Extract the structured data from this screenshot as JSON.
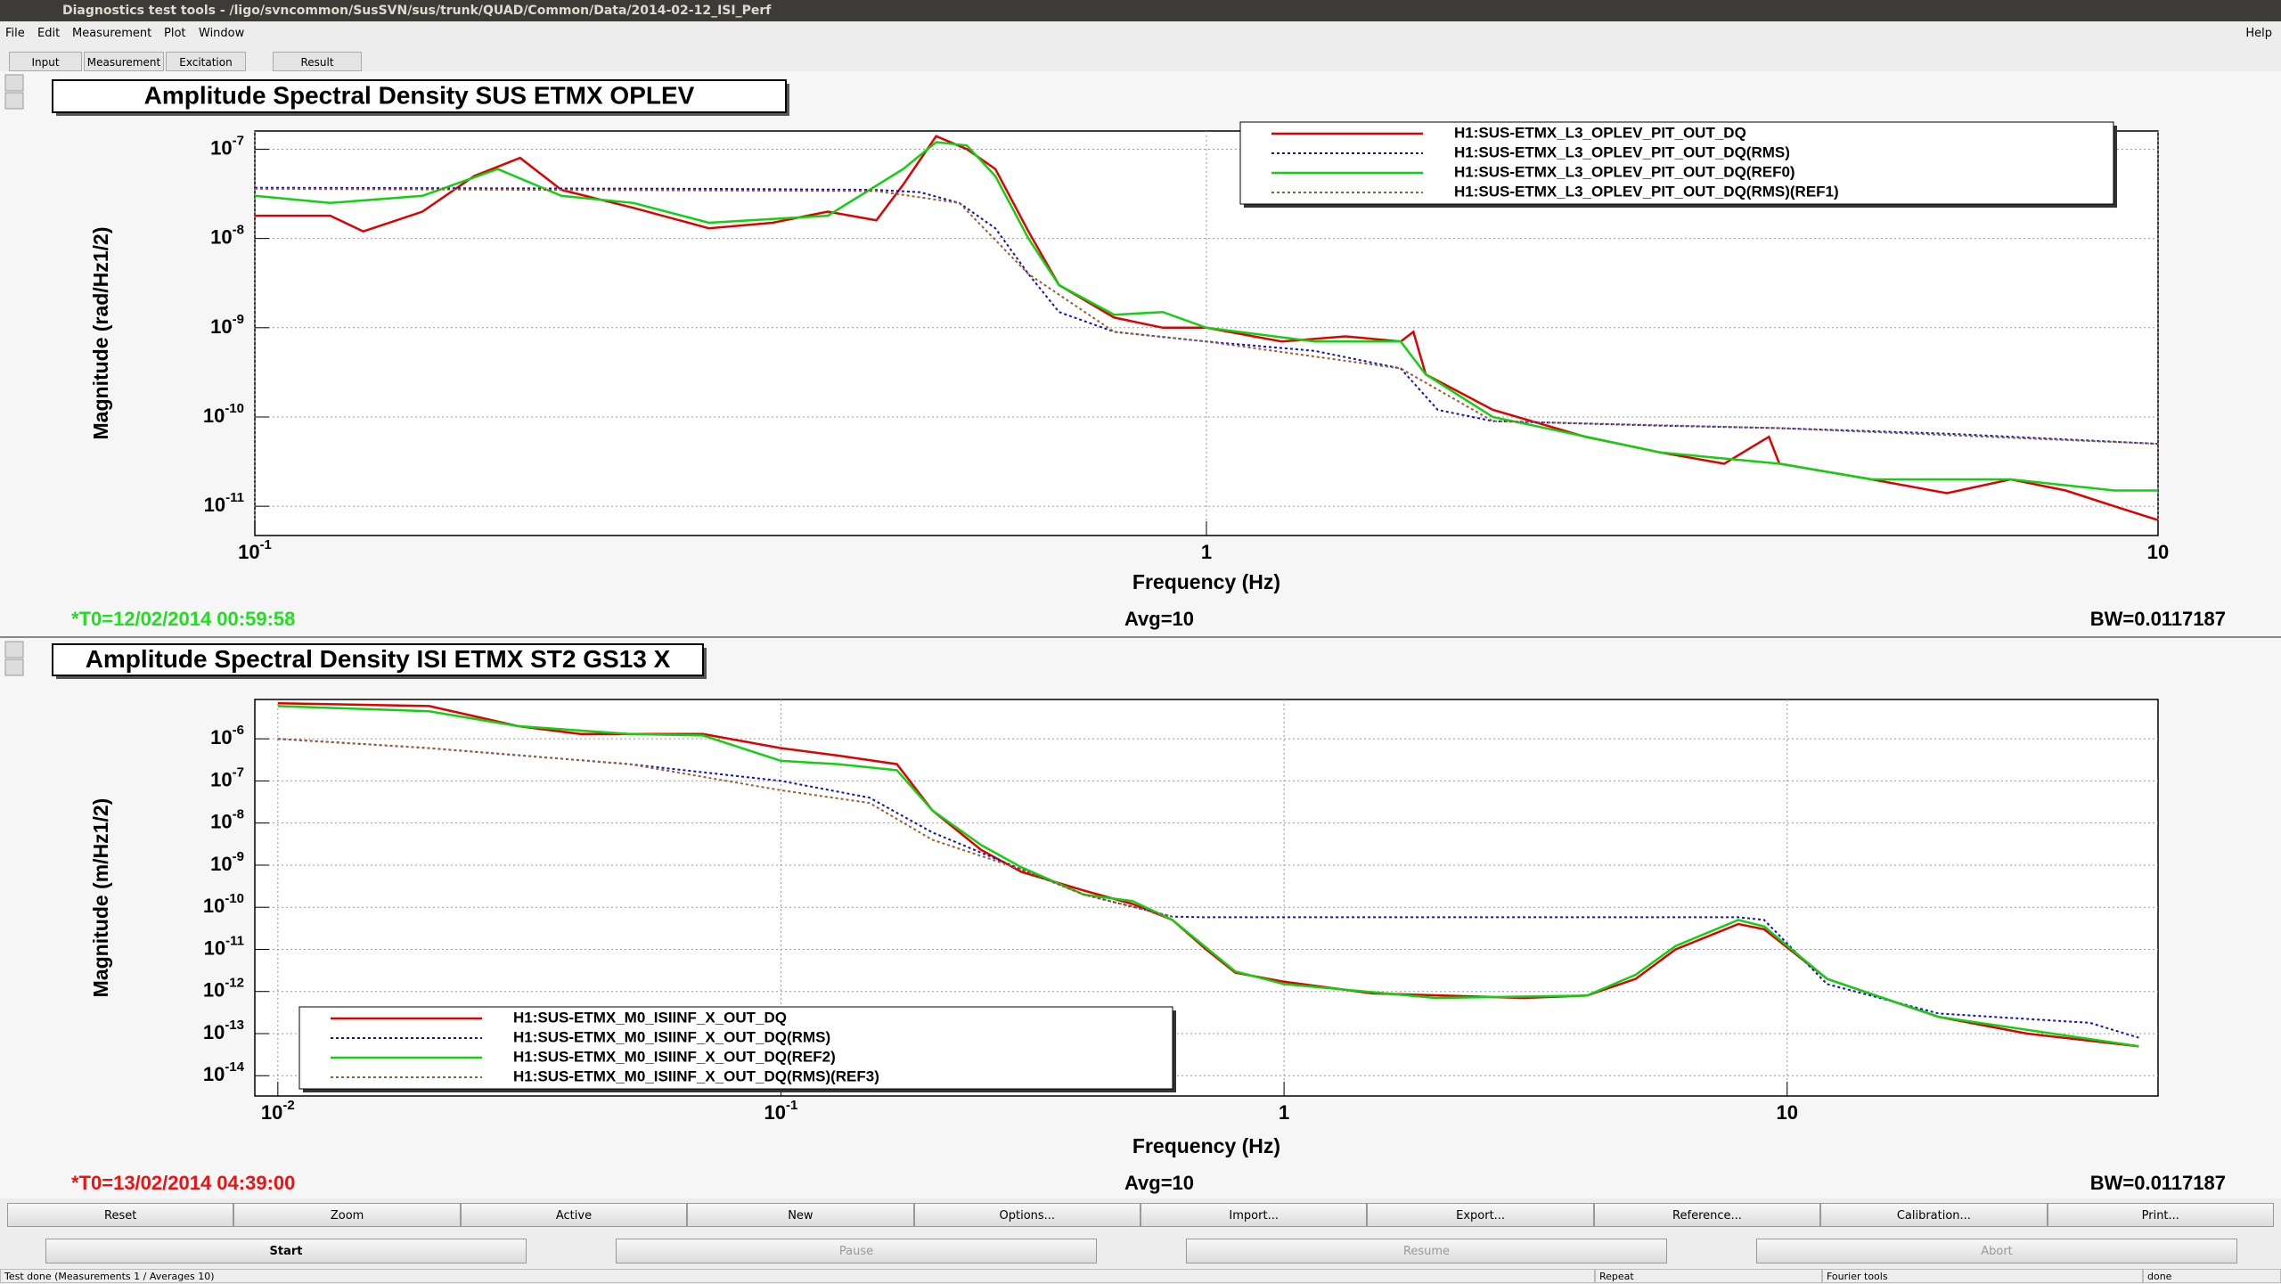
{
  "window_title": "Diagnostics test tools - /ligo/svncommon/SusSVN/sus/trunk/QUAD/Common/Data/2014-02-12_ISI_Perf",
  "menu": [
    "File",
    "Edit",
    "Measurement",
    "Plot",
    "Window"
  ],
  "help": "Help",
  "tabs": [
    "Input",
    "Measurement",
    "Excitation",
    "Result"
  ],
  "chart_data": [
    {
      "type": "line",
      "title": "Amplitude Spectral Density SUS ETMX OPLEV",
      "xlabel": "Frequency (Hz)",
      "ylabel": "Magnitude (rad/Hz1/2)",
      "log_x": true,
      "log_y": true,
      "grid": true,
      "legend": "upper right",
      "xlim": [
        0.1,
        10
      ],
      "ylim": [
        4.7e-12,
        1.6e-07
      ],
      "xticks": [
        {
          "value": 0.1,
          "label": "10-1"
        },
        1,
        10
      ],
      "yticks": [
        {
          "value": 1e-11,
          "label": "10-11"
        },
        {
          "value": 1e-10,
          "label": "10-10"
        },
        {
          "value": 1e-09,
          "label": "10-9"
        },
        {
          "value": 1e-08,
          "label": "10-8"
        },
        {
          "value": 1e-07,
          "label": "10-7"
        }
      ],
      "series": [
        {
          "name": "H1:SUS-ETMX_L3_OPLEV_PIT_OUT_DQ",
          "color": "#e00000",
          "dash": "solid",
          "x": [
            0.1,
            0.12,
            0.13,
            0.15,
            0.17,
            0.19,
            0.21,
            0.25,
            0.3,
            0.35,
            0.4,
            0.45,
            0.48,
            0.52,
            0.56,
            0.6,
            0.65,
            0.7,
            0.8,
            0.9,
            1.0,
            1.2,
            1.4,
            1.6,
            1.65,
            1.7,
            2,
            2.5,
            3,
            3.5,
            3.9,
            4,
            5,
            6,
            7,
            8,
            9,
            10
          ],
          "values": [
            1.8e-08,
            1.8e-08,
            1.2e-08,
            2e-08,
            5e-08,
            8e-08,
            3.5e-08,
            2.2e-08,
            1.3e-08,
            1.5e-08,
            2e-08,
            1.6e-08,
            4e-08,
            1.4e-07,
            1e-07,
            6e-08,
            1.2e-08,
            3e-09,
            1.3e-09,
            1e-09,
            1e-09,
            7e-10,
            8e-10,
            7e-10,
            9e-10,
            3e-10,
            1.2e-10,
            6e-11,
            4e-11,
            3e-11,
            6e-11,
            3e-11,
            2e-11,
            1.4e-11,
            2e-11,
            1.5e-11,
            1e-11,
            7e-12
          ]
        },
        {
          "name": "H1:SUS-ETMX_L3_OPLEV_PIT_OUT_DQ(RMS)",
          "color": "#1010c0",
          "dash": "dotted",
          "x": [
            0.1,
            0.3,
            0.45,
            0.5,
            0.55,
            0.6,
            0.65,
            0.7,
            0.8,
            1,
            1.3,
            1.6,
            1.75,
            2,
            3,
            4,
            6,
            10
          ],
          "values": [
            3.7e-08,
            3.6e-08,
            3.5e-08,
            3.3e-08,
            2.5e-08,
            1.3e-08,
            4e-09,
            1.5e-09,
            9e-10,
            7e-10,
            5.5e-10,
            3.5e-10,
            1.2e-10,
            9e-11,
            8e-11,
            7.5e-11,
            6.5e-11,
            5e-11
          ]
        },
        {
          "name": "H1:SUS-ETMX_L3_OPLEV_PIT_OUT_DQ(REF0)",
          "color": "#10d010",
          "dash": "solid",
          "x": [
            0.1,
            0.12,
            0.15,
            0.18,
            0.21,
            0.25,
            0.3,
            0.4,
            0.48,
            0.52,
            0.56,
            0.6,
            0.65,
            0.7,
            0.8,
            0.9,
            1,
            1.3,
            1.6,
            1.7,
            2,
            3,
            4,
            5,
            7,
            9,
            10
          ],
          "values": [
            3e-08,
            2.5e-08,
            3e-08,
            6e-08,
            3e-08,
            2.5e-08,
            1.5e-08,
            1.8e-08,
            6e-08,
            1.2e-07,
            1.1e-07,
            5e-08,
            1e-08,
            3e-09,
            1.4e-09,
            1.5e-09,
            1e-09,
            7e-10,
            7e-10,
            3e-10,
            1e-10,
            4e-11,
            3e-11,
            2e-11,
            2e-11,
            1.5e-11,
            1.5e-11
          ]
        },
        {
          "name": "H1:SUS-ETMX_L3_OPLEV_PIT_OUT_DQ(RMS)(REF1)",
          "color": "#a05a2c",
          "dash": "dotted",
          "x": [
            0.1,
            0.45,
            0.55,
            0.65,
            0.8,
            1,
            1.6,
            2,
            4,
            10
          ],
          "values": [
            3.6e-08,
            3.4e-08,
            2.5e-08,
            4e-09,
            9e-10,
            7e-10,
            3.5e-10,
            9e-11,
            7.5e-11,
            5e-11
          ]
        }
      ],
      "t0": "*T0=12/02/2014 00:59:58",
      "t0_color": "#22dd22",
      "avg": "Avg=10",
      "bw": "BW=0.0117187"
    },
    {
      "type": "line",
      "title": "Amplitude Spectral Density ISI ETMX ST2 GS13 X",
      "xlabel": "Frequency (Hz)",
      "ylabel": "Magnitude (m/Hz1/2)",
      "log_x": true,
      "log_y": true,
      "grid": true,
      "legend": "lower left",
      "xlim": [
        0.009,
        54.6
      ],
      "ylim": [
        3.3e-15,
        8.6e-06
      ],
      "xticks": [
        {
          "value": 0.01,
          "label": "10-2"
        },
        {
          "value": 0.1,
          "label": "10-1"
        },
        1,
        10
      ],
      "yticks": [
        {
          "value": 1e-14,
          "label": "10-14"
        },
        {
          "value": 1e-13,
          "label": "10-13"
        },
        {
          "value": 1e-12,
          "label": "10-12"
        },
        {
          "value": 1e-11,
          "label": "10-11"
        },
        {
          "value": 1e-10,
          "label": "10-10"
        },
        {
          "value": 1e-09,
          "label": "10-9"
        },
        {
          "value": 1e-08,
          "label": "10-8"
        },
        {
          "value": 1e-07,
          "label": "10-7"
        },
        {
          "value": 1e-06,
          "label": "10-6"
        }
      ],
      "series": [
        {
          "name": "H1:SUS-ETMX_M0_ISIINF_X_OUT_DQ",
          "color": "#e00000",
          "dash": "solid",
          "x": [
            0.01,
            0.02,
            0.03,
            0.04,
            0.07,
            0.1,
            0.13,
            0.17,
            0.2,
            0.25,
            0.3,
            0.4,
            0.5,
            0.6,
            0.7,
            0.8,
            1,
            1.5,
            3,
            4,
            5,
            6,
            8,
            9,
            12,
            15,
            20,
            30,
            50
          ],
          "values": [
            7e-06,
            6e-06,
            2e-06,
            1.3e-06,
            1.3e-06,
            6e-07,
            4e-07,
            2.5e-07,
            2e-08,
            2.3e-09,
            7e-10,
            2.5e-10,
            1.2e-10,
            5e-11,
            1e-11,
            2.8e-12,
            1.7e-12,
            9e-13,
            7e-13,
            8e-13,
            2e-12,
            1e-11,
            4e-11,
            3e-11,
            2e-12,
            8e-13,
            2.5e-13,
            1e-13,
            5e-14
          ]
        },
        {
          "name": "H1:SUS-ETMX_M0_ISIINF_X_OUT_DQ(RMS)",
          "color": "#1010c0",
          "dash": "dotted",
          "x": [
            0.01,
            0.02,
            0.05,
            0.1,
            0.15,
            0.2,
            0.3,
            0.4,
            0.6,
            0.7,
            5,
            8,
            9,
            12,
            20,
            40,
            50
          ],
          "values": [
            1e-06,
            6e-07,
            2.5e-07,
            1e-07,
            4e-08,
            6e-09,
            8e-10,
            2e-10,
            6e-11,
            5.8e-11,
            5.8e-11,
            5.8e-11,
            5e-11,
            1.5e-12,
            3e-13,
            1.8e-13,
            8e-14
          ]
        },
        {
          "name": "H1:SUS-ETMX_M0_ISIINF_X_OUT_DQ(REF2)",
          "color": "#10d010",
          "dash": "solid",
          "x": [
            0.01,
            0.02,
            0.03,
            0.05,
            0.07,
            0.1,
            0.13,
            0.17,
            0.2,
            0.25,
            0.3,
            0.4,
            0.5,
            0.6,
            0.8,
            1,
            2,
            4,
            5,
            6,
            8,
            9,
            12,
            20,
            50
          ],
          "values": [
            6e-06,
            4.5e-06,
            2e-06,
            1.3e-06,
            1.2e-06,
            3e-07,
            2.5e-07,
            1.8e-07,
            2e-08,
            3e-09,
            9e-10,
            2e-10,
            1.4e-10,
            5e-11,
            3e-12,
            1.5e-12,
            7e-13,
            8e-13,
            2.5e-12,
            1.2e-11,
            5e-11,
            3.5e-11,
            2e-12,
            2.5e-13,
            5e-14
          ]
        },
        {
          "name": "H1:SUS-ETMX_M0_ISIINF_X_OUT_DQ(RMS)(REF3)",
          "color": "#a05a2c",
          "dash": "dotted",
          "x": [
            0.01,
            0.02,
            0.05,
            0.1,
            0.15,
            0.2,
            0.3,
            0.4,
            0.6
          ],
          "values": [
            1e-06,
            6e-07,
            2.5e-07,
            6e-08,
            3e-08,
            4e-09,
            8e-10,
            2e-10,
            6e-11
          ]
        }
      ],
      "t0": "*T0=13/02/2014 04:39:00",
      "t0_color": "#ee1111",
      "avg": "Avg=10",
      "bw": "BW=0.0117187"
    }
  ],
  "buttons": [
    "Reset",
    "Zoom",
    "Active",
    "New",
    "Options...",
    "Import...",
    "Export...",
    "Reference...",
    "Calibration...",
    "Print..."
  ],
  "controls": [
    "Start",
    "Pause",
    "Resume",
    "Abort"
  ],
  "status": [
    "Test done (Measurements 1 / Averages 10)",
    "Repeat",
    "Fourier tools",
    "done"
  ]
}
